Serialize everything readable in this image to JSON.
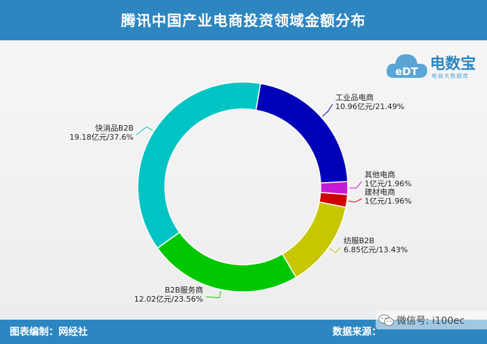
{
  "header": {
    "title": "腾讯中国产业电商投资领域金额分布"
  },
  "logo": {
    "brand": "电数宝",
    "sub": "电商大数据库",
    "mark_text": "eDT"
  },
  "footer": {
    "left": "图表编制：网经社",
    "right": "数据来源："
  },
  "watermark": {
    "text": "微信号: i100ec"
  },
  "colors": {
    "header": "#2e86c1"
  },
  "chart_data": {
    "type": "pie",
    "donut": true,
    "title": "腾讯中国产业电商投资领域金额分布",
    "slices": [
      {
        "name": "工业品电商",
        "value": 10.96,
        "label": "10.96亿元/21.49%",
        "color": "#0000b8"
      },
      {
        "name": "其他电商",
        "value": 1,
        "label": "1亿元/1.96%",
        "color": "#c71ad6"
      },
      {
        "name": "建材电商",
        "value": 1,
        "label": "1亿元/1.96%",
        "color": "#d10000"
      },
      {
        "name": "纺服B2B",
        "value": 6.85,
        "label": "6.85亿元/13.43%",
        "color": "#c7c700"
      },
      {
        "name": "B2B服务商",
        "value": 12.02,
        "label": "12.02亿元/23.56%",
        "color": "#00c800"
      },
      {
        "name": "快消品B2B",
        "value": 19.18,
        "label": "19.18亿元/37.6%",
        "color": "#00c4c4"
      }
    ]
  }
}
